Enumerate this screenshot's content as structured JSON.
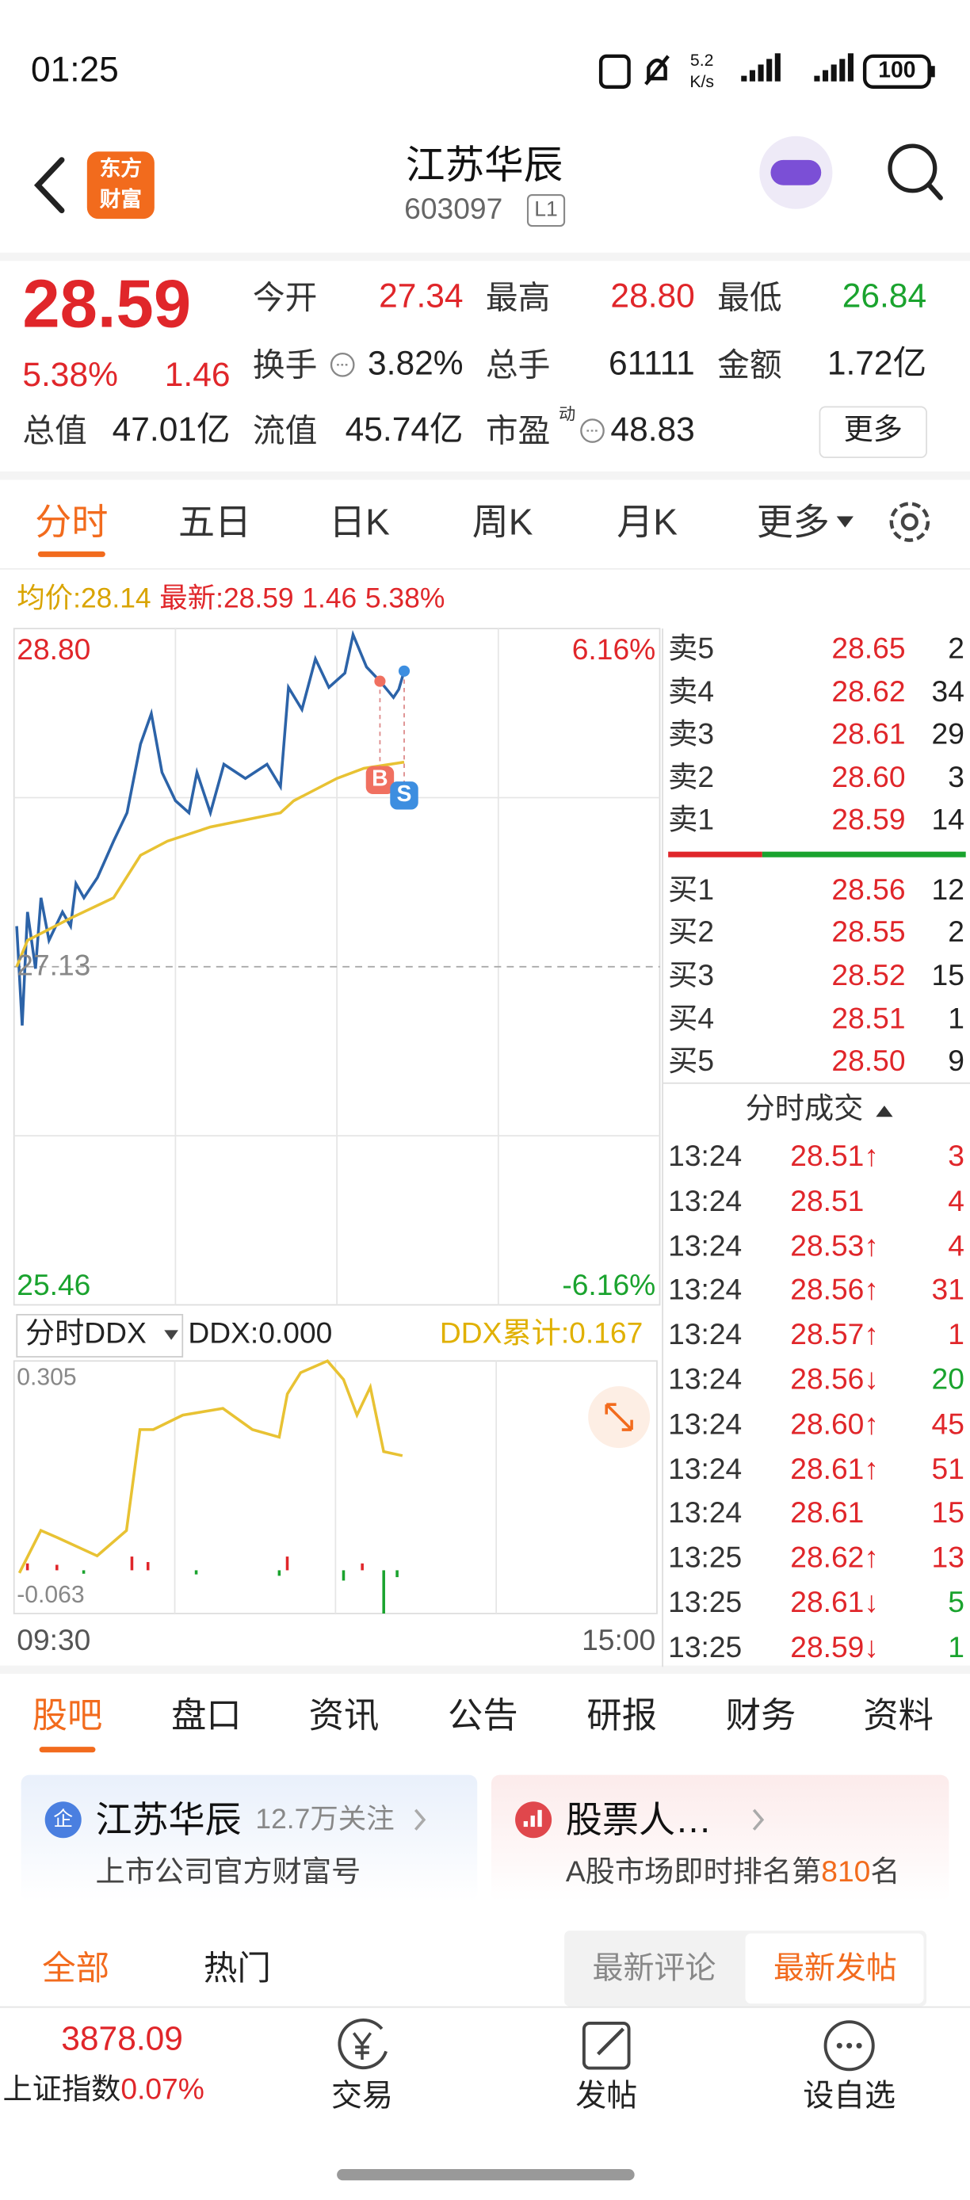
{
  "status_bar": {
    "time": "01:25",
    "speed_value": "5.2",
    "speed_unit": "K/s",
    "battery": "100"
  },
  "header": {
    "logo_top": "东方",
    "logo_bottom": "财富",
    "name": "江苏华辰",
    "code": "603097",
    "level": "L1"
  },
  "quote": {
    "price": "28.59",
    "change_pct": "5.38%",
    "change": "1.46",
    "fields": [
      {
        "label": "今开",
        "value": "27.34"
      },
      {
        "label": "最高",
        "value": "28.80"
      },
      {
        "label": "最低",
        "value": "26.84"
      },
      {
        "label": "换手",
        "value": "3.82%"
      },
      {
        "label": "总手",
        "value": "61111"
      },
      {
        "label": "金额",
        "value": "1.72亿"
      },
      {
        "label": "总值",
        "value": "47.01亿"
      },
      {
        "label": "流值",
        "value": "45.74亿"
      },
      {
        "label": "市盈",
        "sup": "动",
        "value": "48.83"
      }
    ],
    "more": "更多"
  },
  "tabs": [
    "分时",
    "五日",
    "日K",
    "周K",
    "月K",
    "更多"
  ],
  "info_line": {
    "avg": "28.14",
    "latest": "28.59",
    "change": "1.46",
    "pct": "5.38%"
  },
  "chart_data": [
    {
      "type": "line",
      "ylim": [
        25.46,
        28.8
      ],
      "yticks": [
        25.46,
        27.13,
        {
          "value": 28.8,
          "label": "28.80"
        }
      ],
      "y2lim": [
        -6.16,
        6.16
      ],
      "y2ticks": [
        {
          "value": -6.16,
          "label": "-6.16%"
        },
        {
          "value": 6.16,
          "label": "6.16%"
        }
      ],
      "series": [
        {
          "name": "最新:",
          "color": "#2c63a8",
          "x": [
            "09:31",
            "09:33",
            "09:35",
            "09:38",
            "09:40",
            "09:43",
            "09:48",
            "09:51",
            "09:53",
            "09:56",
            "10:01",
            "10:07",
            "10:12",
            "10:17",
            "10:21",
            "10:25",
            "10:30",
            "10:35",
            "10:38",
            "10:43",
            "10:48",
            "10:56",
            "11:04",
            "11:09",
            "11:12",
            "11:17",
            "11:22",
            "11:27",
            "13:03",
            "13:06",
            "13:11",
            "13:16",
            "13:21",
            "13:23",
            "13:25"
          ],
          "values": [
            27.33,
            26.84,
            27.4,
            27.12,
            27.47,
            27.26,
            27.4,
            27.33,
            27.54,
            27.47,
            27.57,
            27.75,
            27.89,
            28.23,
            28.38,
            28.09,
            27.95,
            27.89,
            28.09,
            27.89,
            28.13,
            28.06,
            28.13,
            28.02,
            28.51,
            28.4,
            28.65,
            28.51,
            28.58,
            28.77,
            28.61,
            28.54,
            28.46,
            28.5,
            28.59
          ]
        },
        {
          "name": "均价:",
          "color": "#e8c233",
          "x": [
            "09:31",
            "09:35",
            "09:51",
            "10:07",
            "10:17",
            "10:27",
            "10:43",
            "11:09",
            "11:14",
            "13:00",
            "13:10",
            "13:25"
          ],
          "values": [
            27.13,
            27.26,
            27.37,
            27.47,
            27.68,
            27.75,
            27.82,
            27.89,
            27.95,
            28.06,
            28.11,
            28.14
          ]
        }
      ],
      "markers": [
        {
          "label": "B",
          "x": "13:16",
          "value": 28.54,
          "color": "#f07060"
        },
        {
          "label": "S",
          "x": "13:25",
          "value": 28.59,
          "color": "#3d8ee0"
        }
      ]
    },
    {
      "type": "line",
      "title": "分时DDX",
      "annotations": [
        "DDX:0.000",
        "DDX累计:0.167"
      ],
      "ylim": [
        -0.063,
        0.305
      ],
      "yticks": [
        -0.063,
        0.305
      ],
      "xlim": [
        "09:30",
        "15:00"
      ],
      "xticks": [
        "09:30",
        "15:00"
      ],
      "series": [
        {
          "color": "#e8c233",
          "x": [
            "09:32",
            "09:40",
            "09:46",
            "10:01",
            "10:12",
            "10:17",
            "10:22",
            "10:33",
            "10:48",
            "10:59",
            "11:09",
            "11:12",
            "11:17",
            "11:27",
            "13:03",
            "13:08",
            "13:13",
            "13:18",
            "13:25"
          ],
          "values": [
            -0.004,
            0.058,
            0.048,
            0.021,
            0.058,
            0.205,
            0.205,
            0.226,
            0.236,
            0.205,
            0.194,
            0.257,
            0.288,
            0.305,
            0.278,
            0.226,
            0.267,
            0.173,
            0.167
          ]
        }
      ],
      "bars": {
        "x": [
          "09:35",
          "09:46",
          "09:56",
          "10:14",
          "10:20",
          "10:38",
          "11:09",
          "11:12",
          "13:03",
          "13:10",
          "13:18",
          "13:23"
        ],
        "values": [
          0.01,
          0.008,
          -0.005,
          0.02,
          0.012,
          -0.006,
          -0.008,
          0.02,
          -0.015,
          0.01,
          -0.063,
          -0.01
        ],
        "up_color": "#e0262a",
        "down_color": "#1aa32e"
      }
    }
  ],
  "order_book": {
    "asks": [
      {
        "label": "卖5",
        "price": "28.65",
        "volume": "2"
      },
      {
        "label": "卖4",
        "price": "28.62",
        "volume": "34"
      },
      {
        "label": "卖3",
        "price": "28.61",
        "volume": "29"
      },
      {
        "label": "卖2",
        "price": "28.60",
        "volume": "3"
      },
      {
        "label": "卖1",
        "price": "28.59",
        "volume": "14"
      }
    ],
    "bids": [
      {
        "label": "买1",
        "price": "28.56",
        "volume": "12"
      },
      {
        "label": "买2",
        "price": "28.55",
        "volume": "2"
      },
      {
        "label": "买3",
        "price": "28.52",
        "volume": "15"
      },
      {
        "label": "买4",
        "price": "28.51",
        "volume": "1"
      },
      {
        "label": "买5",
        "price": "28.50",
        "volume": "9"
      }
    ]
  },
  "trades": {
    "title": "分时成交",
    "rows": [
      [
        "13:24",
        "28.51↑",
        "3"
      ],
      [
        "13:24",
        "28.51",
        "4"
      ],
      [
        "13:24",
        "28.53↑",
        "4"
      ],
      [
        "13:24",
        "28.56↑",
        "31"
      ],
      [
        "13:24",
        "28.57↑",
        "1"
      ],
      [
        "13:24",
        "28.56↓",
        "20"
      ],
      [
        "13:24",
        "28.60↑",
        "45"
      ],
      [
        "13:24",
        "28.61↑",
        "51"
      ],
      [
        "13:24",
        "28.61",
        "15"
      ],
      [
        "13:25",
        "28.62↑",
        "13"
      ],
      [
        "13:25",
        "28.61↓",
        "5"
      ],
      [
        "13:25",
        "28.59↓",
        "1"
      ]
    ]
  },
  "section_tabs": [
    "股吧",
    "盘口",
    "资讯",
    "公告",
    "研报",
    "财务",
    "资料"
  ],
  "cards": [
    {
      "icon": "企",
      "title": "江苏华辰",
      "meta": "12.7万关注",
      "sub": "上市公司官方财富号"
    },
    {
      "title": "股票人…",
      "sub_prefix": "A股市场即时排名第",
      "rank": "810",
      "sub_suffix": "名"
    }
  ],
  "filters": [
    "全部",
    "热门"
  ],
  "sorts": [
    "最新评论",
    "最新发帖"
  ],
  "bottom_nav": {
    "index_value": "3878.09",
    "index_name": "上证指数",
    "index_pct": "0.07%",
    "items": [
      "交易",
      "发帖",
      "设自选"
    ]
  }
}
